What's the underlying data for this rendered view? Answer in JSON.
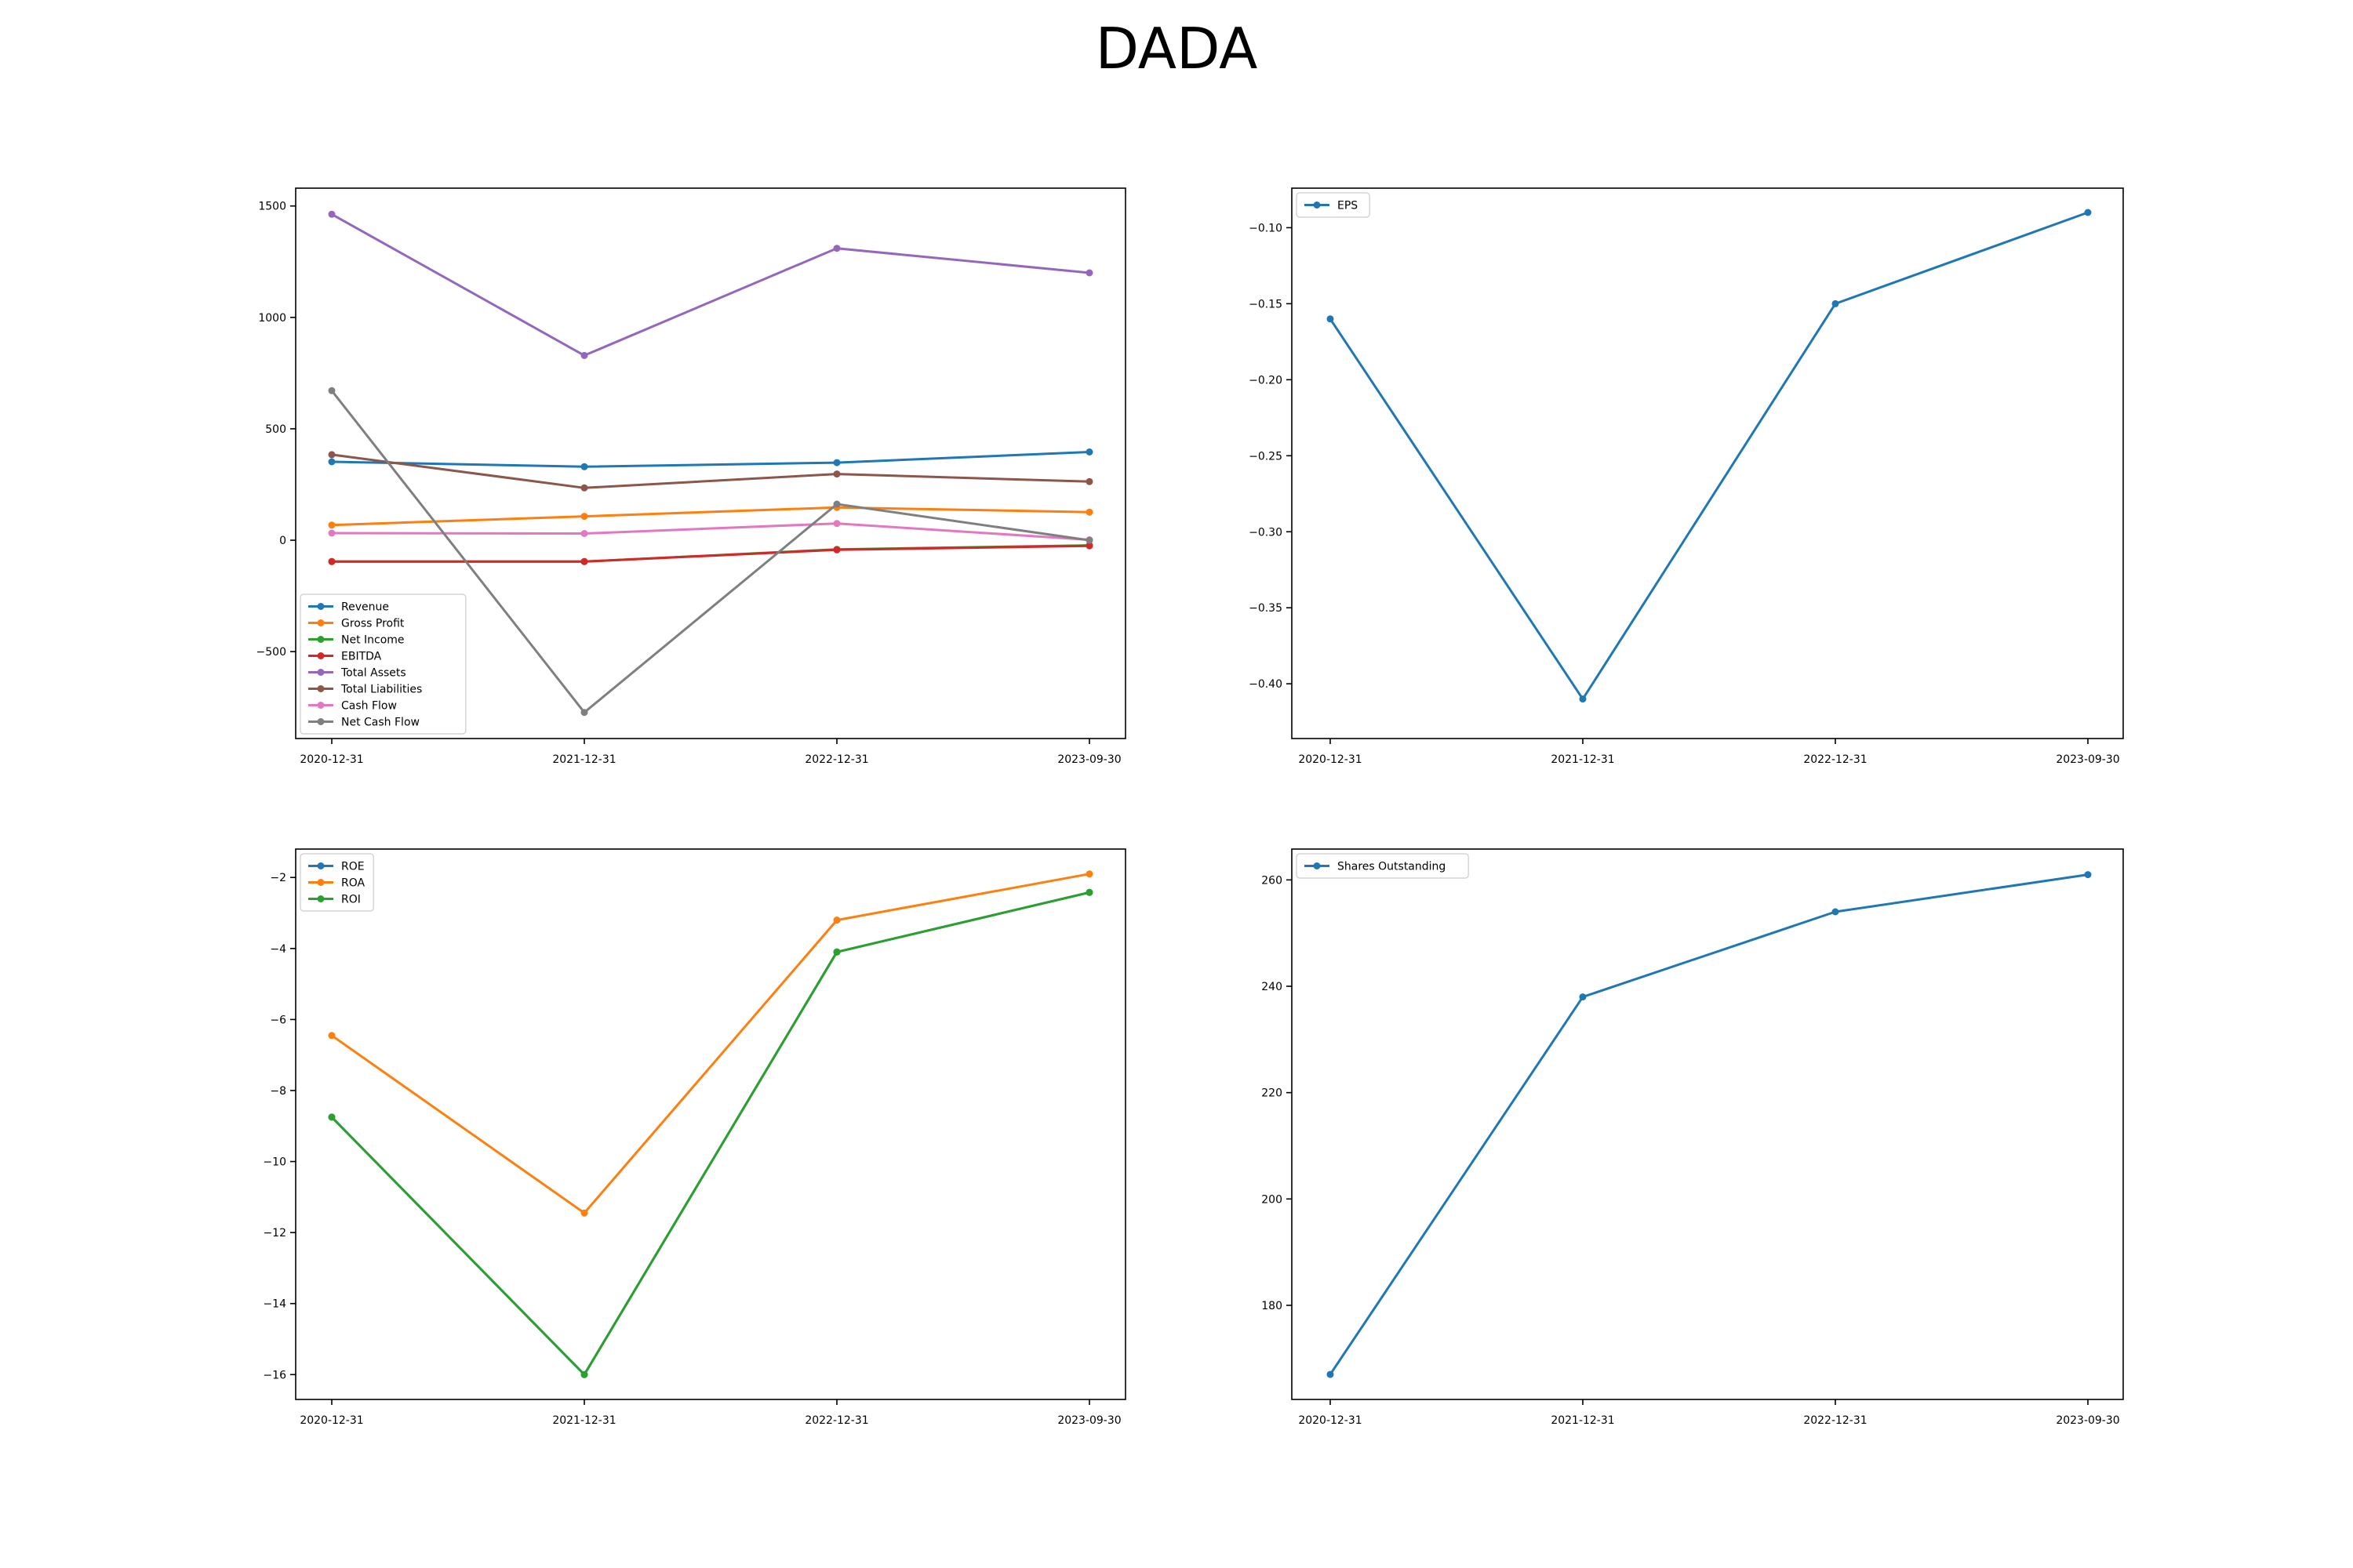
{
  "title": "DADA",
  "chart_data": [
    {
      "type": "line",
      "categories": [
        "2020-12-31",
        "2021-12-31",
        "2022-12-31",
        "2023-09-30"
      ],
      "ylim": [
        -890,
        1580
      ],
      "yticks": [
        -500,
        0,
        500,
        1000,
        1500
      ],
      "ytick_labels": [
        "−500",
        "0",
        "500",
        "1000",
        "1500"
      ],
      "grid": false,
      "legend_position": "lower-left",
      "series": [
        {
          "name": "Revenue",
          "color": "#1f77b4",
          "values": [
            352,
            330,
            348,
            396
          ]
        },
        {
          "name": "Gross Profit",
          "color": "#ff7f0e",
          "values": [
            68,
            107,
            147,
            126
          ]
        },
        {
          "name": "Net Income",
          "color": "#2ca02c",
          "values": [
            -96,
            -96,
            -41,
            -23
          ]
        },
        {
          "name": "EBITDA",
          "color": "#d62728",
          "values": [
            -96,
            -96,
            -43,
            -25
          ]
        },
        {
          "name": "Total Assets",
          "color": "#9467bd",
          "values": [
            1463,
            829,
            1310,
            1200
          ]
        },
        {
          "name": "Total Liabilities",
          "color": "#8c564b",
          "values": [
            384,
            235,
            297,
            263
          ]
        },
        {
          "name": "Cash Flow",
          "color": "#e377c2",
          "values": [
            32,
            30,
            75,
            2
          ]
        },
        {
          "name": "Net Cash Flow",
          "color": "#7f7f7f",
          "values": [
            671,
            -773,
            162,
            0
          ]
        }
      ]
    },
    {
      "type": "line",
      "categories": [
        "2020-12-31",
        "2021-12-31",
        "2022-12-31",
        "2023-09-30"
      ],
      "ylim": [
        -0.436,
        -0.074
      ],
      "yticks": [
        -0.4,
        -0.35,
        -0.3,
        -0.25,
        -0.2,
        -0.15,
        -0.1
      ],
      "ytick_labels": [
        "−0.40",
        "−0.35",
        "−0.30",
        "−0.25",
        "−0.20",
        "−0.15",
        "−0.10"
      ],
      "grid": false,
      "legend_position": "upper-left",
      "series": [
        {
          "name": "EPS",
          "color": "#1f77b4",
          "values": [
            -0.16,
            -0.41,
            -0.15,
            -0.09
          ]
        }
      ]
    },
    {
      "type": "line",
      "categories": [
        "2020-12-31",
        "2021-12-31",
        "2022-12-31",
        "2023-09-30"
      ],
      "ylim": [
        -16.7,
        -1.2
      ],
      "yticks": [
        -16,
        -14,
        -12,
        -10,
        -8,
        -6,
        -4,
        -2
      ],
      "ytick_labels": [
        "−16",
        "−14",
        "−12",
        "−10",
        "−8",
        "−6",
        "−4",
        "−2"
      ],
      "grid": false,
      "legend_position": "upper-left",
      "series": [
        {
          "name": "ROE",
          "color": "#1f77b4",
          "values": [
            -8.75,
            -16.0,
            -4.1,
            -2.42
          ]
        },
        {
          "name": "ROA",
          "color": "#ff7f0e",
          "values": [
            -6.45,
            -11.45,
            -3.2,
            -1.9
          ]
        },
        {
          "name": "ROI",
          "color": "#2ca02c",
          "values": [
            -8.75,
            -16.0,
            -4.1,
            -2.42
          ]
        }
      ]
    },
    {
      "type": "line",
      "categories": [
        "2020-12-31",
        "2021-12-31",
        "2022-12-31",
        "2023-09-30"
      ],
      "ylim": [
        162.3,
        265.8
      ],
      "yticks": [
        180,
        200,
        220,
        240,
        260
      ],
      "ytick_labels": [
        "180",
        "200",
        "220",
        "240",
        "260"
      ],
      "grid": false,
      "legend_position": "upper-left",
      "series": [
        {
          "name": "Shares Outstanding",
          "color": "#1f77b4",
          "values": [
            167,
            238,
            254,
            261
          ]
        }
      ]
    }
  ]
}
